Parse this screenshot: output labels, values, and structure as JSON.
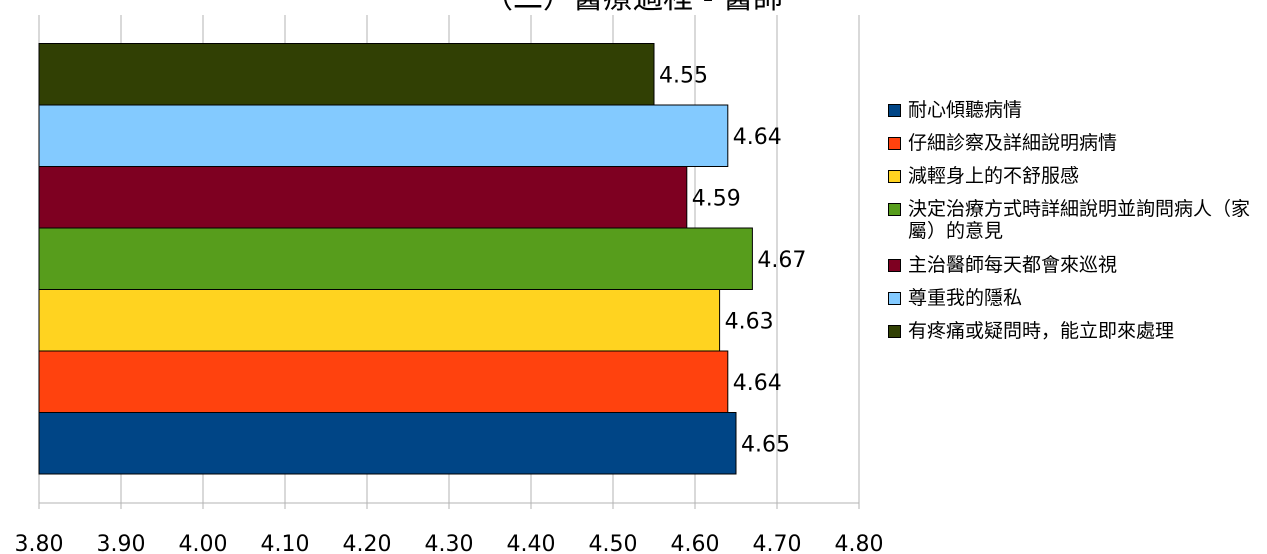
{
  "chart_data": {
    "type": "bar",
    "orientation": "horizontal",
    "title": "（二）醫療過程 - 醫師",
    "xlim": [
      3.8,
      4.8
    ],
    "x_ticks": [
      "3.80",
      "3.90",
      "4.00",
      "4.10",
      "4.20",
      "4.30",
      "4.40",
      "4.50",
      "4.60",
      "4.70",
      "4.80"
    ],
    "grid": true,
    "legend_position": "right",
    "series": [
      {
        "name": "耐心傾聽病情",
        "value": 4.65,
        "label": "4.65",
        "color": "#004586"
      },
      {
        "name": "仔細診察及詳細說明病情",
        "value": 4.64,
        "label": "4.64",
        "color": "#ff420e"
      },
      {
        "name": "減輕身上的不舒服感",
        "value": 4.63,
        "label": "4.63",
        "color": "#ffd320"
      },
      {
        "name": "決定治療方式時詳細說明並詢問病人（家屬）的意見",
        "value": 4.67,
        "label": "4.67",
        "color": "#579d1c"
      },
      {
        "name": "主治醫師每天都會來巡視",
        "value": 4.59,
        "label": "4.59",
        "color": "#7e0021"
      },
      {
        "name": "尊重我的隱私",
        "value": 4.64,
        "label": "4.64",
        "color": "#83caff"
      },
      {
        "name": "有疼痛或疑問時，能立即來處理",
        "value": 4.55,
        "label": "4.55",
        "color": "#314004"
      }
    ]
  }
}
